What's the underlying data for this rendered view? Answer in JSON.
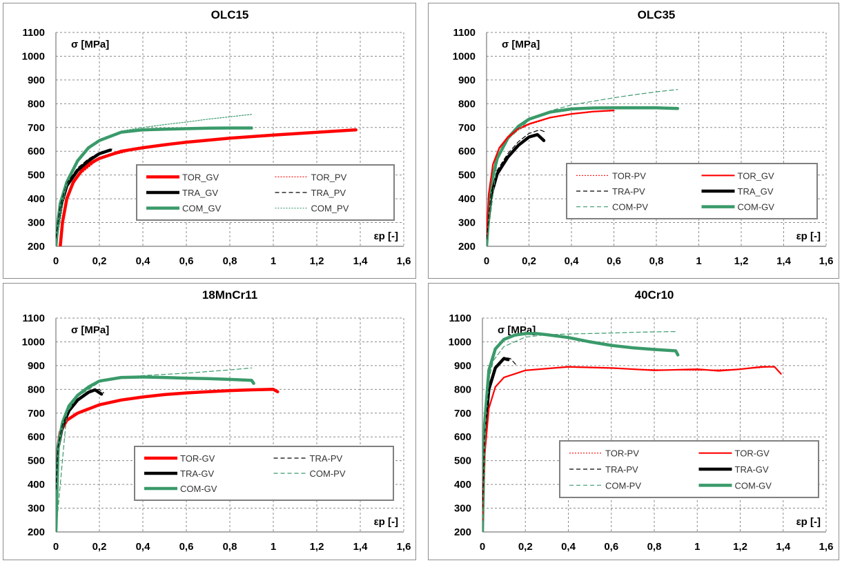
{
  "chart_data": [
    {
      "type": "line",
      "title": "OLC15",
      "ylabel": "σ [MPa]",
      "xlabel": "εp [-]",
      "xlim": [
        0,
        1.6
      ],
      "ylim": [
        200,
        1100
      ],
      "xticks": [
        "0",
        "0,2",
        "0,4",
        "0,6",
        "0,8",
        "1",
        "1,2",
        "1,4",
        "1,6"
      ],
      "yticks": [
        "200",
        "300",
        "400",
        "500",
        "600",
        "700",
        "800",
        "900",
        "1000",
        "1100"
      ],
      "grid": true,
      "legend_placement": "lower-right",
      "legend_columns": 2,
      "series": [
        {
          "name": "TOR_GV",
          "color": "#ff0000",
          "style": "solid-thick",
          "x": [
            0.02,
            0.03,
            0.05,
            0.08,
            0.12,
            0.16,
            0.2,
            0.3,
            0.4,
            0.5,
            0.6,
            0.8,
            1.0,
            1.2,
            1.38
          ],
          "y": [
            200,
            300,
            400,
            470,
            520,
            550,
            570,
            600,
            615,
            627,
            638,
            655,
            668,
            680,
            690
          ]
        },
        {
          "name": "TOR_PV",
          "color": "#ff0000",
          "style": "dotted",
          "x": [
            0.02,
            0.05,
            0.1,
            0.2,
            0.4,
            0.6,
            0.8,
            1.0,
            1.2,
            1.38
          ],
          "y": [
            210,
            400,
            495,
            570,
            615,
            638,
            655,
            668,
            680,
            688
          ]
        },
        {
          "name": "TRA_GV",
          "color": "#000000",
          "style": "solid-thick",
          "x": [
            0.0,
            0.01,
            0.02,
            0.05,
            0.1,
            0.15,
            0.2,
            0.25
          ],
          "y": [
            230,
            300,
            360,
            455,
            520,
            560,
            590,
            605
          ]
        },
        {
          "name": "TRA_PV",
          "color": "#000000",
          "style": "dashed",
          "x": [
            0.0,
            0.02,
            0.05,
            0.1,
            0.15,
            0.2,
            0.27
          ],
          "y": [
            235,
            370,
            465,
            530,
            568,
            595,
            612
          ]
        },
        {
          "name": "COM_GV",
          "color": "#3a9a6a",
          "style": "solid-thick",
          "x": [
            0.0,
            0.01,
            0.02,
            0.05,
            0.1,
            0.15,
            0.2,
            0.3,
            0.4,
            0.5,
            0.6,
            0.7,
            0.8,
            0.9
          ],
          "y": [
            200,
            310,
            380,
            470,
            560,
            615,
            645,
            680,
            690,
            693,
            695,
            697,
            698,
            698
          ]
        },
        {
          "name": "COM_PV",
          "color": "#3a9a6a",
          "style": "dotted",
          "x": [
            0.0,
            0.05,
            0.1,
            0.2,
            0.3,
            0.4,
            0.5,
            0.6,
            0.7,
            0.8,
            0.9
          ],
          "y": [
            200,
            475,
            565,
            650,
            685,
            700,
            712,
            723,
            735,
            745,
            755
          ]
        }
      ]
    },
    {
      "type": "line",
      "title": "OLC35",
      "ylabel": "σ [MPa]",
      "xlabel": "εp [-]",
      "xlim": [
        0,
        1.6
      ],
      "ylim": [
        200,
        1100
      ],
      "xticks": [
        "0",
        "0,2",
        "0,4",
        "0,6",
        "0,8",
        "1",
        "1,2",
        "1,4",
        "1,6"
      ],
      "yticks": [
        "200",
        "300",
        "400",
        "500",
        "600",
        "700",
        "800",
        "900",
        "1000",
        "1100"
      ],
      "grid": true,
      "legend_placement": "lower-right",
      "legend_columns": 2,
      "series": [
        {
          "name": "TOR-PV",
          "color": "#ff0000",
          "style": "dotted",
          "x": [
            0.0,
            0.01,
            0.03,
            0.06,
            0.1,
            0.15,
            0.2,
            0.3,
            0.4,
            0.5,
            0.6
          ],
          "y": [
            240,
            420,
            540,
            610,
            655,
            690,
            712,
            740,
            755,
            765,
            770
          ]
        },
        {
          "name": "TOR_GV",
          "color": "#ff0000",
          "style": "solid",
          "x": [
            0.0,
            0.01,
            0.03,
            0.06,
            0.1,
            0.15,
            0.2,
            0.3,
            0.4,
            0.5,
            0.6
          ],
          "y": [
            240,
            420,
            545,
            615,
            660,
            695,
            715,
            742,
            757,
            767,
            772
          ]
        },
        {
          "name": "TRA-PV",
          "color": "#000000",
          "style": "dashed",
          "x": [
            0.0,
            0.02,
            0.05,
            0.1,
            0.15,
            0.2,
            0.25,
            0.28
          ],
          "y": [
            230,
            420,
            520,
            590,
            640,
            675,
            690,
            680
          ]
        },
        {
          "name": "TRA_GV",
          "color": "#000000",
          "style": "solid-thick",
          "x": [
            0.0,
            0.02,
            0.05,
            0.1,
            0.15,
            0.2,
            0.24,
            0.27
          ],
          "y": [
            230,
            410,
            505,
            575,
            625,
            660,
            670,
            645
          ]
        },
        {
          "name": "COM-PV",
          "color": "#3a9a6a",
          "style": "dashed",
          "x": [
            0.0,
            0.05,
            0.1,
            0.2,
            0.3,
            0.4,
            0.5,
            0.6,
            0.7,
            0.8,
            0.9
          ],
          "y": [
            200,
            560,
            650,
            730,
            770,
            795,
            810,
            825,
            838,
            850,
            860
          ]
        },
        {
          "name": "COM-GV",
          "color": "#3a9a6a",
          "style": "solid-thick",
          "x": [
            0.0,
            0.02,
            0.05,
            0.1,
            0.15,
            0.2,
            0.3,
            0.4,
            0.5,
            0.6,
            0.7,
            0.8,
            0.9
          ],
          "y": [
            200,
            460,
            570,
            655,
            705,
            735,
            765,
            778,
            782,
            783,
            783,
            783,
            780
          ]
        }
      ]
    },
    {
      "type": "line",
      "title": "18MnCr11",
      "ylabel": "σ [MPa]",
      "xlabel": "εp [-]",
      "xlim": [
        0,
        1.6
      ],
      "ylim": [
        200,
        1100
      ],
      "xticks": [
        "0",
        "0,2",
        "0,4",
        "0,6",
        "0,8",
        "1",
        "1,2",
        "1,4",
        "1,6"
      ],
      "yticks": [
        "200",
        "300",
        "400",
        "500",
        "600",
        "700",
        "800",
        "900",
        "1000",
        "1100"
      ],
      "grid": true,
      "legend_placement": "lower-right",
      "legend_columns": 2,
      "series": [
        {
          "name": "TOR-GV",
          "color": "#ff0000",
          "style": "solid-thick",
          "x": [
            0.0,
            0.01,
            0.02,
            0.05,
            0.1,
            0.2,
            0.3,
            0.4,
            0.5,
            0.6,
            0.7,
            0.8,
            0.9,
            1.0,
            1.02
          ],
          "y": [
            400,
            560,
            620,
            670,
            700,
            735,
            755,
            768,
            778,
            785,
            790,
            795,
            798,
            800,
            790
          ]
        },
        {
          "name": "TRA-PV",
          "color": "#000000",
          "style": "dashed",
          "x": [
            0.0,
            0.01,
            0.03,
            0.06,
            0.1,
            0.15,
            0.2,
            0.22
          ],
          "y": [
            380,
            560,
            650,
            715,
            760,
            792,
            800,
            785
          ]
        },
        {
          "name": "TRA-GV",
          "color": "#000000",
          "style": "solid-thick",
          "x": [
            0.0,
            0.01,
            0.03,
            0.06,
            0.1,
            0.15,
            0.18,
            0.21
          ],
          "y": [
            380,
            555,
            645,
            710,
            755,
            788,
            798,
            780
          ]
        },
        {
          "name": "COM-PV",
          "color": "#3a9a6a",
          "style": "dashed",
          "x": [
            0.0,
            0.05,
            0.1,
            0.2,
            0.3,
            0.4,
            0.5,
            0.6,
            0.7,
            0.8,
            0.9
          ],
          "y": [
            200,
            700,
            770,
            830,
            850,
            858,
            863,
            868,
            875,
            882,
            890
          ]
        },
        {
          "name": "COM-GV",
          "color": "#3a9a6a",
          "style": "solid-thick",
          "x": [
            0.0,
            0.01,
            0.03,
            0.06,
            0.1,
            0.15,
            0.2,
            0.3,
            0.4,
            0.5,
            0.6,
            0.7,
            0.8,
            0.9,
            0.91
          ],
          "y": [
            200,
            560,
            660,
            730,
            775,
            810,
            835,
            850,
            852,
            850,
            847,
            845,
            842,
            838,
            825
          ]
        }
      ]
    },
    {
      "type": "line",
      "title": "40Cr10",
      "ylabel": "σ [MPa]",
      "xlabel": "εp [-]",
      "xlim": [
        0,
        1.6
      ],
      "ylim": [
        200,
        1100
      ],
      "xticks": [
        "0",
        "0,2",
        "0,4",
        "0,6",
        "0,8",
        "1",
        "1,2",
        "1,4",
        "1,6"
      ],
      "yticks": [
        "200",
        "300",
        "400",
        "500",
        "600",
        "700",
        "800",
        "900",
        "1000",
        "1100"
      ],
      "grid": true,
      "legend_placement": "lower-right",
      "legend_columns": 2,
      "series": [
        {
          "name": "TOR-PV",
          "color": "#ff0000",
          "style": "dotted",
          "x": [
            0.0,
            0.01,
            0.03,
            0.06,
            0.1,
            0.2,
            0.4,
            0.6,
            0.8,
            1.0,
            1.2,
            1.35
          ],
          "y": [
            250,
            520,
            720,
            810,
            850,
            880,
            893,
            888,
            883,
            880,
            885,
            895
          ]
        },
        {
          "name": "TOR-GV",
          "color": "#ff0000",
          "style": "solid",
          "x": [
            0.0,
            0.01,
            0.03,
            0.06,
            0.1,
            0.2,
            0.4,
            0.6,
            0.8,
            1.0,
            1.1,
            1.2,
            1.3,
            1.36,
            1.39
          ],
          "y": [
            250,
            520,
            720,
            810,
            850,
            880,
            895,
            890,
            880,
            885,
            878,
            885,
            895,
            895,
            865
          ]
        },
        {
          "name": "TRA-PV",
          "color": "#000000",
          "style": "dashed",
          "x": [
            0.0,
            0.01,
            0.03,
            0.06,
            0.1,
            0.13,
            0.16
          ],
          "y": [
            300,
            600,
            800,
            895,
            935,
            930,
            900
          ]
        },
        {
          "name": "TRA-GV",
          "color": "#000000",
          "style": "solid-thick",
          "x": [
            0.0,
            0.01,
            0.03,
            0.06,
            0.1,
            0.12
          ],
          "y": [
            300,
            600,
            800,
            890,
            930,
            925
          ]
        },
        {
          "name": "COM-PV",
          "color": "#3a9a6a",
          "style": "dashed",
          "x": [
            0.0,
            0.02,
            0.05,
            0.1,
            0.2,
            0.3,
            0.4,
            0.5,
            0.6,
            0.7,
            0.8,
            0.9
          ],
          "y": [
            200,
            800,
            920,
            980,
            1020,
            1030,
            1033,
            1035,
            1037,
            1040,
            1042,
            1043
          ]
        },
        {
          "name": "COM-GV",
          "color": "#3a9a6a",
          "style": "solid-thick",
          "x": [
            0.0,
            0.01,
            0.03,
            0.06,
            0.1,
            0.15,
            0.2,
            0.25,
            0.3,
            0.4,
            0.5,
            0.6,
            0.7,
            0.8,
            0.9,
            0.91
          ],
          "y": [
            200,
            650,
            880,
            970,
            1010,
            1028,
            1035,
            1035,
            1030,
            1018,
            1000,
            985,
            975,
            968,
            962,
            945
          ]
        }
      ]
    }
  ]
}
